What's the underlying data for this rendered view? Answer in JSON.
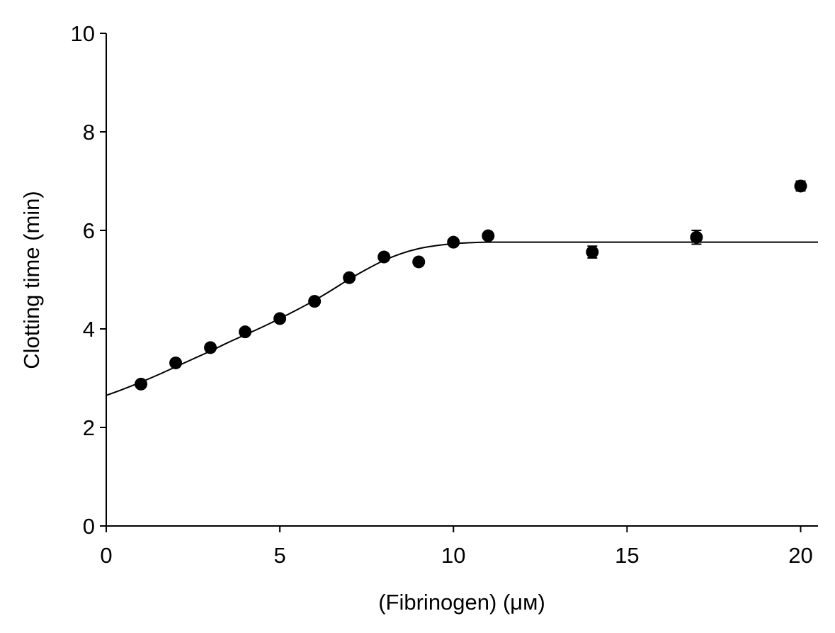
{
  "chart_data": {
    "type": "scatter",
    "title": "",
    "xlabel": "(Fibrinogen) (μм)",
    "ylabel": "Clotting time (min)",
    "xlim": [
      0,
      20.5
    ],
    "ylim": [
      0,
      10
    ],
    "xticks": [
      0,
      5,
      10,
      15,
      20
    ],
    "yticks": [
      0,
      2,
      4,
      6,
      8,
      10
    ],
    "grid": false,
    "legend": "none",
    "series": [
      {
        "marker": "filled-circle",
        "x": [
          1,
          2,
          3,
          4,
          5,
          6,
          7,
          8,
          9,
          10,
          11,
          14,
          17,
          20
        ],
        "y": [
          2.88,
          3.31,
          3.62,
          3.94,
          4.21,
          4.56,
          5.04,
          5.46,
          5.36,
          5.76,
          5.89,
          5.56,
          5.86,
          6.9
        ],
        "error": [
          0.05,
          0.05,
          0.05,
          0.05,
          0.07,
          0.05,
          0.05,
          0.06,
          0.05,
          0.05,
          0.06,
          0.12,
          0.14,
          0.1
        ]
      }
    ],
    "fit_curve": {
      "x": [
        0,
        0.5,
        1,
        1.5,
        2,
        2.5,
        3,
        3.5,
        4,
        4.5,
        5,
        5.5,
        6,
        6.5,
        7,
        7.5,
        8,
        8.5,
        9,
        9.5,
        10,
        10.5,
        11,
        11.5,
        12,
        15,
        20.5
      ],
      "y": [
        2.65,
        2.78,
        2.92,
        3.07,
        3.23,
        3.39,
        3.55,
        3.72,
        3.88,
        4.04,
        4.21,
        4.39,
        4.58,
        4.79,
        5.01,
        5.21,
        5.39,
        5.53,
        5.63,
        5.69,
        5.73,
        5.75,
        5.76,
        5.76,
        5.76,
        5.76,
        5.76
      ]
    }
  }
}
